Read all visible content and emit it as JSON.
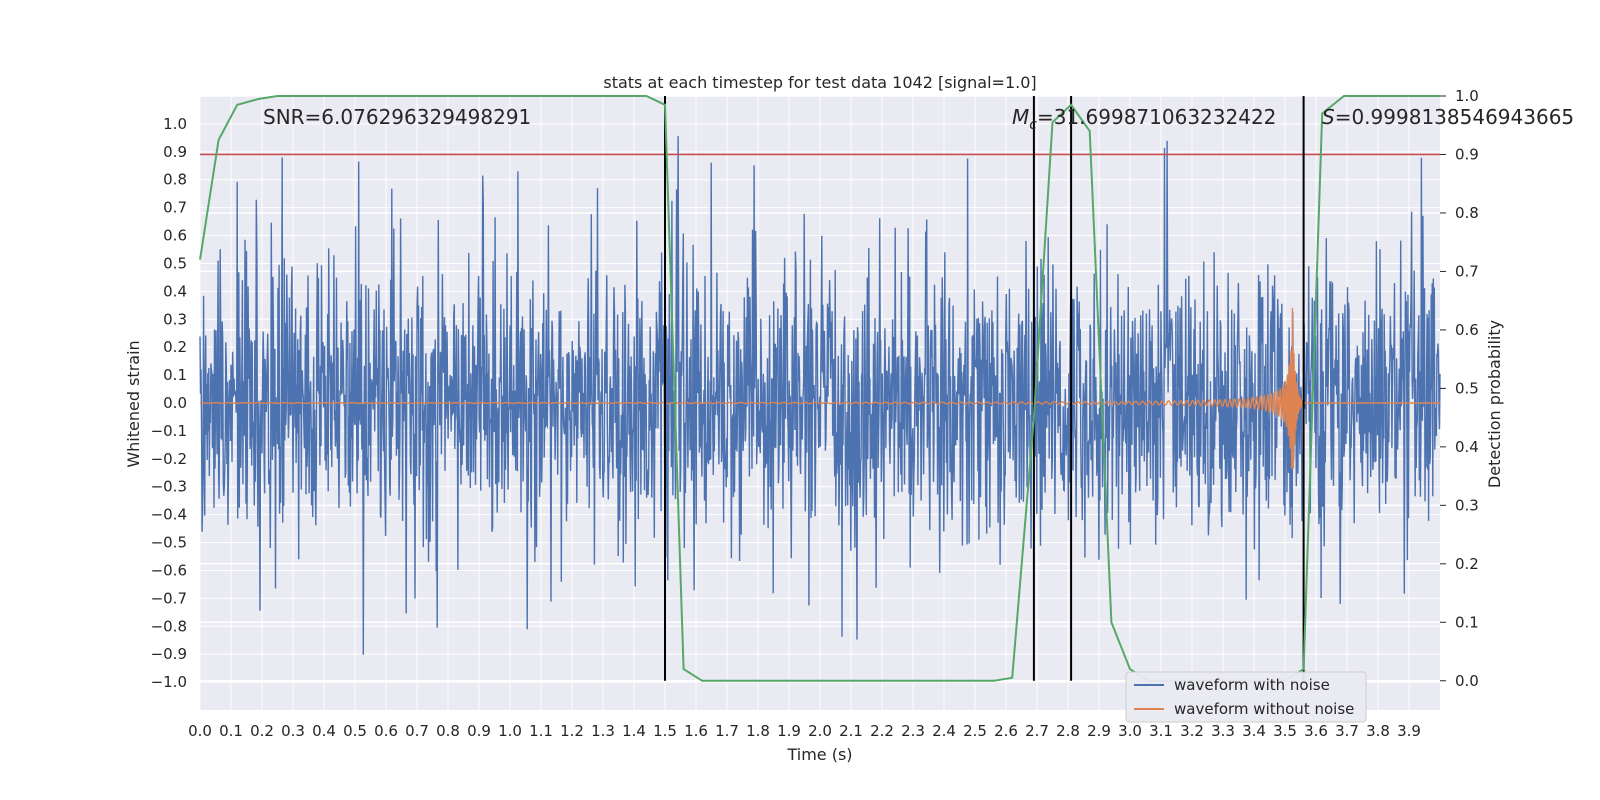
{
  "chart_data": {
    "type": "line",
    "title": "stats at each timestep for test data 1042 [signal=1.0]",
    "xlabel": "Time (s)",
    "ylabel": "Whitened strain",
    "y2label": "Detection probability",
    "xlim": [
      0.0,
      4.0
    ],
    "ylim": [
      -1.1,
      1.1
    ],
    "y2lim": [
      -0.05,
      1.0
    ],
    "grid": true,
    "x_ticks": [
      "0.0",
      "0.1",
      "0.2",
      "0.3",
      "0.4",
      "0.5",
      "0.6",
      "0.7",
      "0.8",
      "0.9",
      "1.0",
      "1.1",
      "1.2",
      "1.3",
      "1.4",
      "1.5",
      "1.6",
      "1.7",
      "1.8",
      "1.9",
      "2.0",
      "2.1",
      "2.2",
      "2.3",
      "2.4",
      "2.5",
      "2.6",
      "2.7",
      "2.8",
      "2.9",
      "3.0",
      "3.1",
      "3.2",
      "3.3",
      "3.4",
      "3.5",
      "3.6",
      "3.7",
      "3.8",
      "3.9"
    ],
    "y_ticks": [
      "1.0",
      "0.9",
      "0.8",
      "0.7",
      "0.6",
      "0.5",
      "0.4",
      "0.3",
      "0.2",
      "0.1",
      "0.0",
      "−0.1",
      "−0.2",
      "−0.3",
      "−0.4",
      "−0.5",
      "−0.6",
      "−0.7",
      "−0.8",
      "−0.9",
      "−1.0"
    ],
    "y2_ticks": [
      "1.0",
      "0.9",
      "0.8",
      "0.7",
      "0.6",
      "0.5",
      "0.4",
      "0.3",
      "0.2",
      "0.1",
      "0.0"
    ],
    "threshold": {
      "value": 0.9,
      "axis": "y2",
      "color": "#c44e52"
    },
    "vertical_lines": [
      1.5,
      2.69,
      2.81,
      3.56
    ],
    "series": [
      {
        "name": "waveform with noise",
        "color": "#4c72b0",
        "description": "white noise, roughly ±0.5 amplitude with spikes up to ±1.0"
      },
      {
        "name": "waveform without noise",
        "color": "#dd8452",
        "description": "chirp signal, growing amplitude, peaking near 3.52 s"
      },
      {
        "name": "detection probability",
        "color": "#55a868",
        "axis": "y2",
        "x": [
          0.0,
          0.06,
          0.12,
          0.19,
          0.25,
          0.31,
          1.0,
          1.44,
          1.5,
          1.56,
          1.62,
          2.56,
          2.62,
          2.69,
          2.75,
          2.81,
          2.87,
          2.94,
          3.0,
          3.06,
          3.5,
          3.56,
          3.62,
          3.69,
          4.0
        ],
        "values": [
          0.72,
          0.925,
          0.985,
          0.995,
          1.0,
          1.0,
          1.0,
          1.0,
          0.985,
          0.02,
          0.0,
          0.0,
          0.005,
          0.45,
          0.955,
          0.985,
          0.94,
          0.1,
          0.02,
          0.0,
          0.0,
          0.02,
          0.97,
          1.0,
          1.0
        ]
      }
    ],
    "annotations": {
      "snr": "SNR=6.076296329498291",
      "mc_symbol": "M",
      "mc_sub": "c",
      "mc_value": "=31.699871063232422",
      "s_symbol": "S",
      "s_value": "=0.9998138546943665"
    },
    "legend": {
      "position": "lower-right",
      "entries": [
        "waveform with noise",
        "waveform without noise"
      ]
    },
    "colors": {
      "background": "#eaeaf2",
      "grid": "#ffffff",
      "noise": "#4c72b0",
      "clean": "#dd8452",
      "probability": "#55a868",
      "threshold": "#c44e52",
      "vline": "#000000"
    }
  }
}
